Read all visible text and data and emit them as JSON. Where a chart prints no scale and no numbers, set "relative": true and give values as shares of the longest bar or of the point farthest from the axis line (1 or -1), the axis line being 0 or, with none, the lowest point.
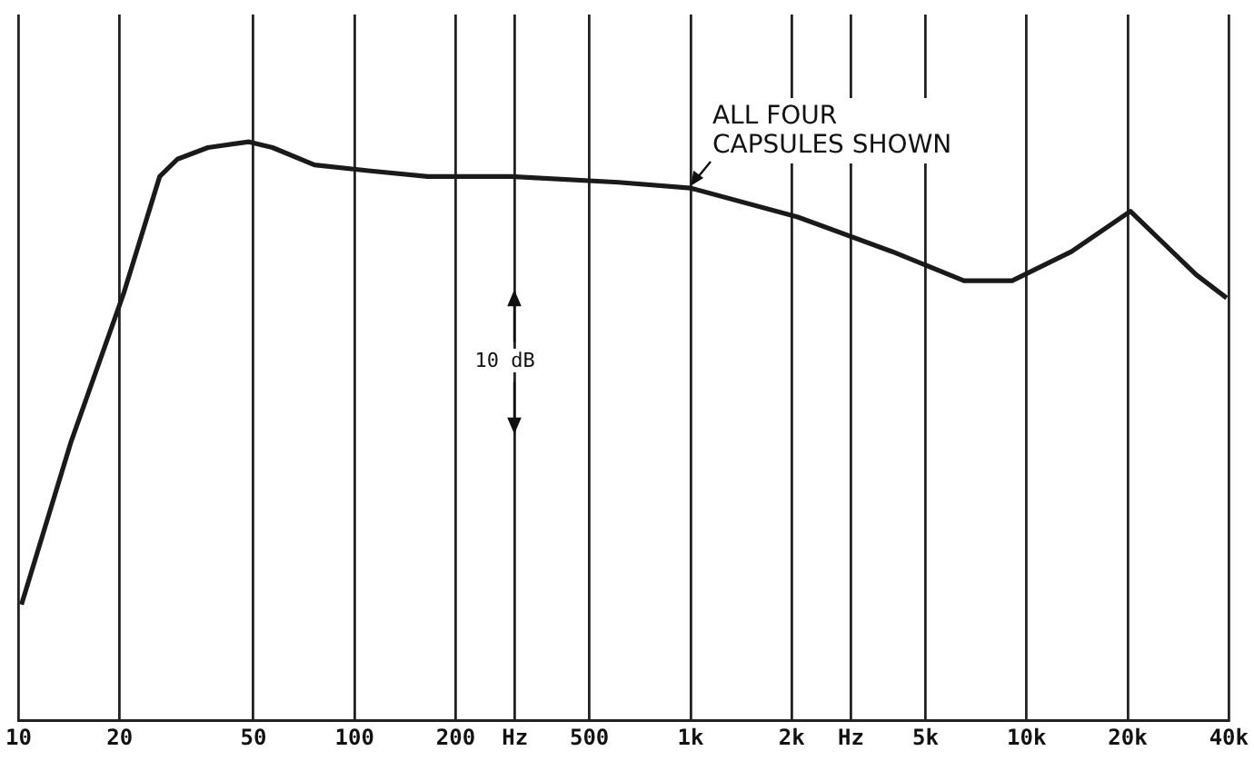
{
  "chart_data": {
    "type": "line",
    "relative": true,
    "log": "x",
    "grid": "x",
    "legend": false,
    "marker": "none",
    "line_style": "solid",
    "xlim": [
      10,
      40000
    ],
    "xticks": [
      10,
      20,
      50,
      100,
      200,
      {
        "value": 300,
        "label": "Hz"
      },
      500,
      {
        "value": 1000,
        "label": "1k"
      },
      {
        "value": 2000,
        "label": "2k"
      },
      {
        "value": 3000,
        "label": "Hz"
      },
      {
        "value": 5000,
        "label": "5k"
      },
      {
        "value": 10000,
        "label": "10k"
      },
      {
        "value": 20000,
        "label": "20k"
      },
      {
        "value": 40000,
        "label": "40k"
      }
    ],
    "series": [
      {
        "color": "#1a1a1a",
        "x": [
          10.2,
          14.3,
          20.6,
          26.3,
          29.7,
          36.6,
          48.5,
          57,
          76,
          110,
          165,
          292,
          610,
          1000,
          2085,
          3990,
          6510,
          9060,
          13590,
          20370,
          32000,
          39400
        ],
        "values": [
          0.2,
          0.48,
          0.74,
          0.94,
          0.97,
          0.99,
          1,
          0.99,
          0.96,
          0.95,
          0.94,
          0.94,
          0.93,
          0.92,
          0.87,
          0.81,
          0.76,
          0.76,
          0.81,
          0.88,
          0.77,
          0.73
        ]
      }
    ],
    "annotations": [
      {
        "text": "ALL FOUR CAPSULES SHOWN",
        "x": 1000,
        "y": 0.92
      },
      "10 dB"
    ]
  }
}
